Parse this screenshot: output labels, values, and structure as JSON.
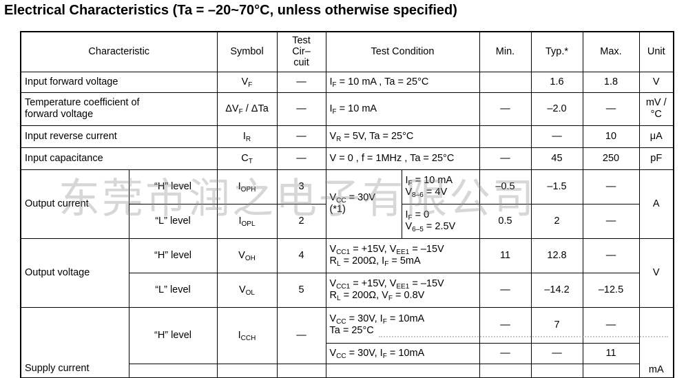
{
  "title": "Electrical Characteristics (Ta = –20~70°C, unless otherwise specified)",
  "headers": {
    "characteristic": "Characteristic",
    "symbol": "Symbol",
    "test_circuit": [
      "Test",
      "Cir–",
      "cuit"
    ],
    "test_condition": "Test Condition",
    "min": "Min.",
    "typ": "Typ.*",
    "max": "Max.",
    "unit": "Unit"
  },
  "dash": "—",
  "rows": {
    "vf": {
      "name": "Input forward voltage",
      "sym": "V",
      "sym_sub": "F",
      "circuit": "—",
      "cond": [
        "I",
        "F",
        " = 10 mA , Ta = 25°C"
      ],
      "min": "",
      "typ": "1.6",
      "max": "1.8",
      "unit": "V"
    },
    "tc": {
      "name": "Temperature coefficient of forward voltage",
      "sym_pre": "ΔV",
      "sym_sub": "F",
      "sym_post": " / ΔTa",
      "circuit": "—",
      "cond": [
        "I",
        "F",
        " = 10 mA"
      ],
      "min": "—",
      "typ": "–2.0",
      "max": "—",
      "unit": "mV / °C"
    },
    "ir": {
      "name": "Input reverse current",
      "sym": "I",
      "sym_sub": "R",
      "circuit": "—",
      "cond": [
        "V",
        "R",
        " = 5V, Ta = 25°C"
      ],
      "min": "",
      "typ": "—",
      "max": "10",
      "unit": "μA"
    },
    "ct": {
      "name": "Input capacitance",
      "sym": "C",
      "sym_sub": "T",
      "circuit": "—",
      "cond_text": "V = 0 , f = 1MHz , Ta = 25°C",
      "min": "—",
      "typ": "45",
      "max": "250",
      "unit": "pF"
    },
    "oc": {
      "name": "Output current",
      "unit": "A",
      "common_cond": [
        "V",
        "CC",
        " = 30V",
        "(*1)"
      ],
      "h": {
        "level": "“H” level",
        "sym": "I",
        "sym_sub": "OPH",
        "circuit": "3",
        "c1": [
          "I",
          "F",
          " = 10 mA"
        ],
        "c2": [
          "V",
          "8–6",
          " = 4V"
        ],
        "min": "–0.5",
        "typ": "–1.5",
        "max": "—"
      },
      "l": {
        "level": "“L” level",
        "sym": "I",
        "sym_sub": "OPL",
        "circuit": "2",
        "c1": [
          "I",
          "F",
          " = 0"
        ],
        "c2": [
          "V",
          "6–5",
          " = 2.5V"
        ],
        "min": "0.5",
        "typ": "2",
        "max": "—"
      }
    },
    "ov": {
      "name": "Output voltage",
      "unit": "V",
      "h": {
        "level": "“H” level",
        "sym": "V",
        "sym_sub": "OH",
        "circuit": "4",
        "l1": [
          "V",
          "CC1",
          " = +15V, V",
          "EE1",
          " = –15V"
        ],
        "l2": [
          "R",
          "L",
          " = 200Ω, I",
          "F",
          " = 5mA"
        ],
        "min": "11",
        "typ": "12.8",
        "max": "—"
      },
      "l": {
        "level": "“L” level",
        "sym": "V",
        "sym_sub": "OL",
        "circuit": "5",
        "l1": [
          "V",
          "CC1",
          " = +15V, V",
          "EE1",
          " = –15V"
        ],
        "l2": [
          "R",
          "L",
          " = 200Ω, V",
          "F",
          " = 0.8V"
        ],
        "min": "—",
        "typ": "–14.2",
        "max": "–12.5"
      }
    },
    "sc": {
      "name": "Supply current",
      "unit": "mA",
      "h": {
        "level": "“H” level",
        "sym": "I",
        "sym_sub": "CCH",
        "circuit": "—",
        "a": {
          "l1": [
            "V",
            "CC",
            " = 30V, I",
            "F",
            " = 10mA"
          ],
          "l2": "Ta = 25°C",
          "min": "—",
          "typ": "7",
          "max": "—"
        },
        "b": {
          "l1": [
            "V",
            "CC",
            " = 30V, I",
            "F",
            " = 10mA"
          ],
          "min": "—",
          "typ": "—",
          "max": "11"
        }
      }
    }
  },
  "watermark": "东莞市润之电子有限公司"
}
